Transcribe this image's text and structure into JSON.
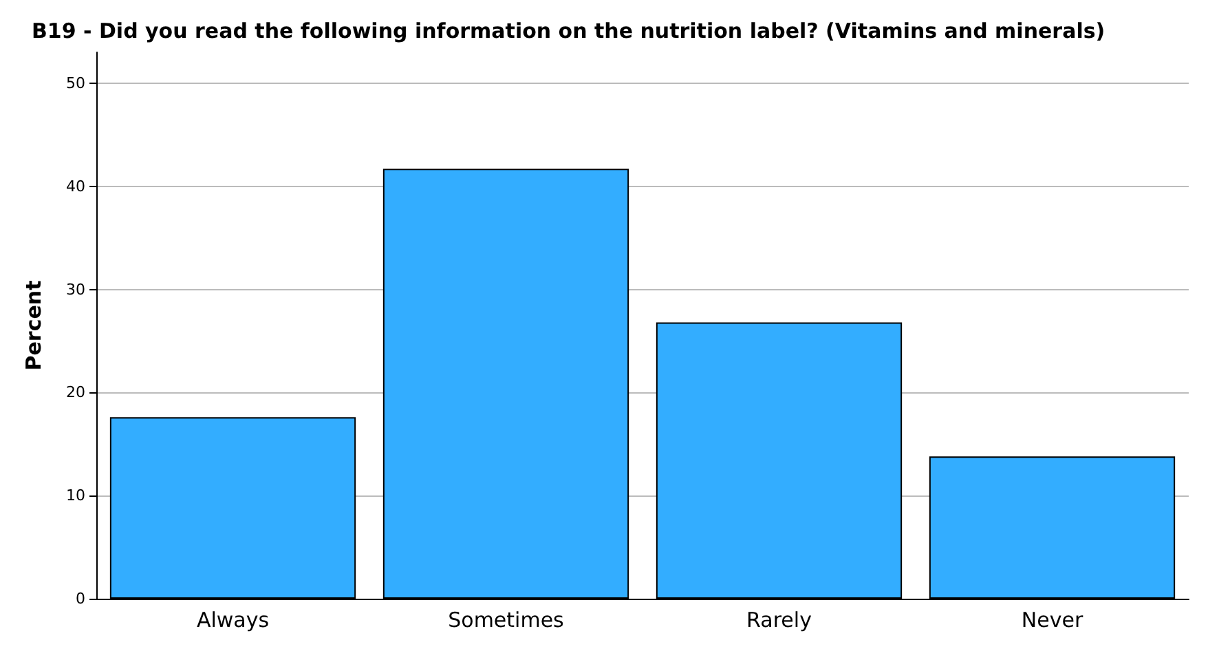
{
  "chart_data": {
    "type": "bar",
    "title": "B19 - Did you read the following information on the nutrition label? (Vitamins and minerals)",
    "ylabel": "Percent",
    "categories": [
      "Always",
      "Sometimes",
      "Rarely",
      "Never"
    ],
    "values": [
      17.6,
      41.7,
      26.8,
      13.8
    ],
    "color": "#33adff",
    "ylim": [
      0,
      53
    ],
    "yticks": [
      0,
      10,
      20,
      30,
      40,
      50
    ],
    "grid": "y"
  }
}
